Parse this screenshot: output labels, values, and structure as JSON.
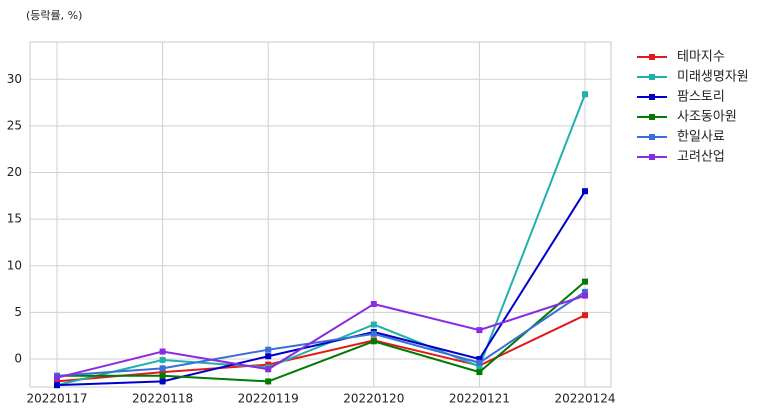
{
  "chart_data": {
    "type": "line",
    "annotation": "(등락률, %)",
    "categories": [
      "20220117",
      "20220118",
      "20220119",
      "20220120",
      "20220121",
      "20220124"
    ],
    "series": [
      {
        "name": "테마지수",
        "color": "#e31a1c",
        "values": [
          -2.4,
          -1.4,
          -0.6,
          2.0,
          -0.7,
          4.7
        ]
      },
      {
        "name": "미래생명자원",
        "color": "#20b2aa",
        "values": [
          -2.8,
          -0.1,
          -0.9,
          3.7,
          -0.8,
          28.4
        ]
      },
      {
        "name": "팜스토리",
        "color": "#0000cd",
        "values": [
          -2.8,
          -2.4,
          0.3,
          2.9,
          0.0,
          18.0
        ]
      },
      {
        "name": "사조동아원",
        "color": "#007a00",
        "values": [
          -1.8,
          -1.8,
          -2.4,
          1.9,
          -1.4,
          8.3
        ]
      },
      {
        "name": "한일사료",
        "color": "#3a6fd8",
        "values": [
          -1.8,
          -1.0,
          1.0,
          2.7,
          -0.4,
          7.2
        ]
      },
      {
        "name": "고려산업",
        "color": "#8a2be2",
        "values": [
          -2.0,
          0.8,
          -1.1,
          5.9,
          3.1,
          6.8
        ]
      }
    ],
    "ylim": [
      -3,
      34
    ],
    "yticks": [
      0,
      5,
      10,
      15,
      20,
      25,
      30
    ],
    "grid": true,
    "legend": "right"
  }
}
